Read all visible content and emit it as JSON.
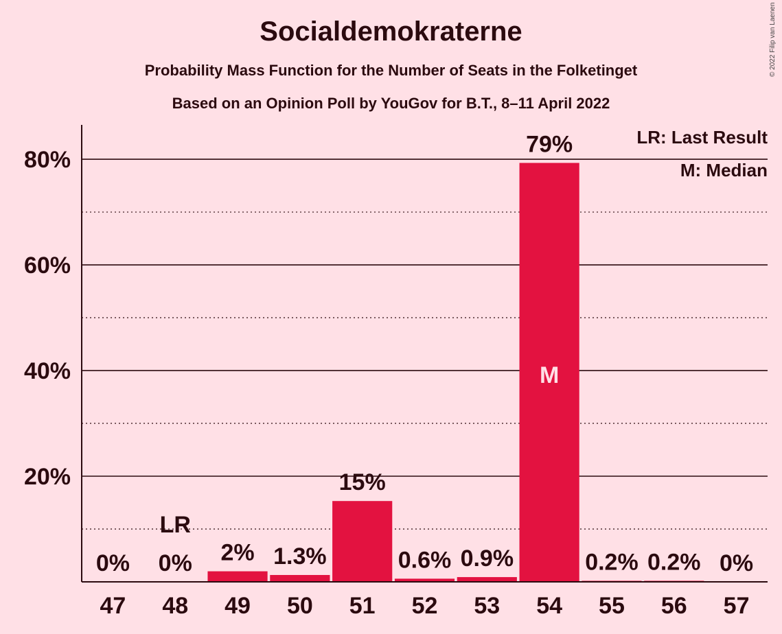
{
  "chart_data": {
    "type": "bar",
    "title": "Socialdemokraterne",
    "subtitle": "Probability Mass Function for the Number of Seats in the Folketinget",
    "subtitle2": "Based on an Opinion Poll by YouGov for B.T., 8–11 April 2022",
    "categories": [
      "47",
      "48",
      "49",
      "50",
      "51",
      "52",
      "53",
      "54",
      "55",
      "56",
      "57"
    ],
    "values": [
      0,
      0,
      2,
      1.3,
      15.3,
      0.6,
      0.9,
      79.3,
      0.2,
      0.2,
      0
    ],
    "data_labels": [
      "0%",
      "0%",
      "2%",
      "1.3%",
      "15%",
      "0.6%",
      "0.9%",
      "79%",
      "0.2%",
      "0.2%",
      "0%"
    ],
    "yticks": [
      20,
      40,
      60,
      80
    ],
    "ytick_labels": [
      "20%",
      "40%",
      "60%",
      "80%"
    ],
    "ylim": [
      0,
      86.5
    ],
    "grid": "solid lines at 20% steps, dotted lines at 10% steps",
    "bar_color": "#e31240",
    "last_result_category": "48",
    "last_result_marker": "LR",
    "median_category": "54",
    "median_marker": "M",
    "legend": {
      "placement": "top-right",
      "items": [
        "LR: Last Result",
        "M: Median"
      ]
    }
  },
  "copyright": "© 2022 Filip van Laenen"
}
